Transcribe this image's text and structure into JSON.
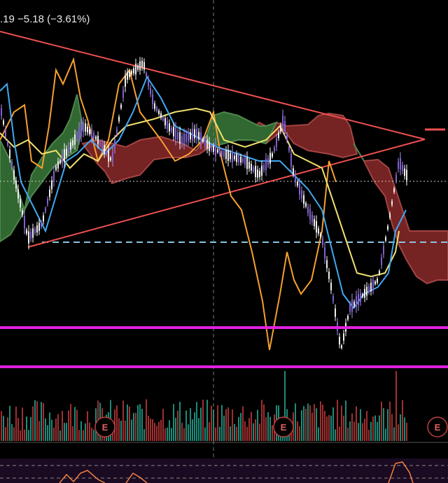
{
  "header": {
    "price_change": ".19 −5.18 (−3.61%)"
  },
  "markers": [
    "E",
    "E",
    "E"
  ]
}
